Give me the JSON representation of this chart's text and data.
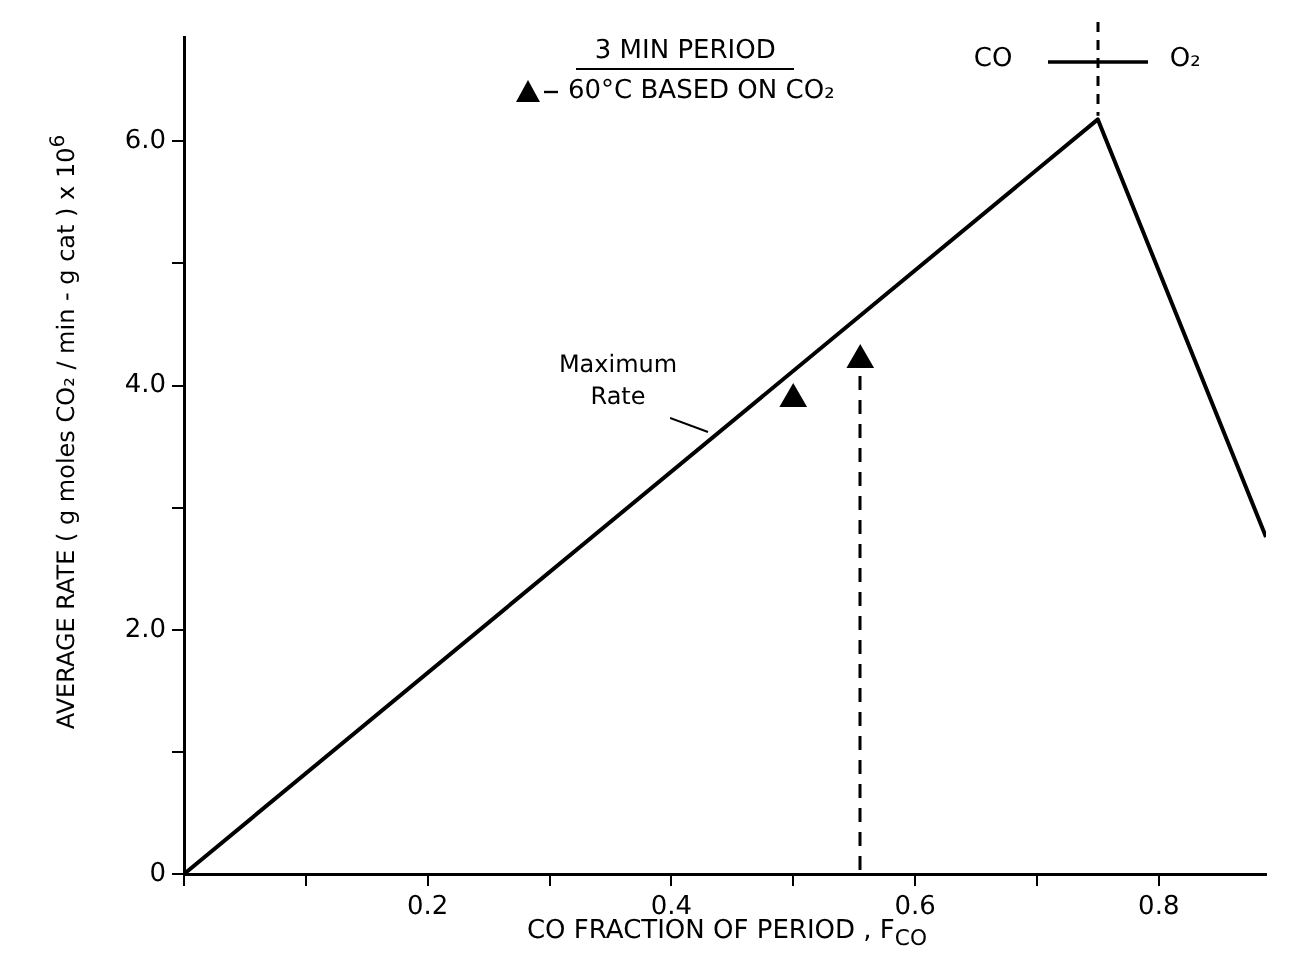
{
  "chart_data": {
    "type": "line",
    "legend_title": "3 MIN PERIOD",
    "xlabel": "CO FRACTION OF PERIOD , F$_{CO}$",
    "ylabel": "AVERAGE RATE ( g moles CO₂ / min - g cat ) x 10$^{6}$",
    "annotations": [
      "CO",
      "O₂"
    ],
    "xlim": [
      0,
      0.888
    ],
    "ylim": [
      0,
      6.85
    ],
    "xticks": [
      {
        "value": 0,
        "label": null
      },
      {
        "value": 0.1,
        "label": null
      },
      0.2,
      {
        "value": 0.3,
        "label": null
      },
      0.4,
      {
        "value": 0.5,
        "label": null
      },
      0.6,
      {
        "value": 0.7,
        "label": null
      },
      0.8
    ],
    "yticks": [
      0,
      {
        "value": 1,
        "label": null
      },
      {
        "value": 2,
        "label": "2.0"
      },
      {
        "value": 3,
        "label": null
      },
      {
        "value": 4,
        "label": "4.0"
      },
      {
        "value": 5,
        "label": null
      },
      {
        "value": 6,
        "label": "6.0"
      }
    ],
    "grid": false,
    "legend": "top",
    "marker": "none",
    "series": [
      {
        "name": "Maximum Rate",
        "color": "#000000",
        "x": [
          0,
          0.75,
          0.888
        ],
        "values": [
          0,
          6.18,
          2.76
        ]
      },
      {
        "name": "60°C BASED ON CO₂",
        "type": "scatter",
        "marker": "triangle",
        "color": "#000000",
        "x": [
          0.5,
          0.555
        ],
        "values": [
          3.89,
          4.21
        ]
      }
    ]
  }
}
